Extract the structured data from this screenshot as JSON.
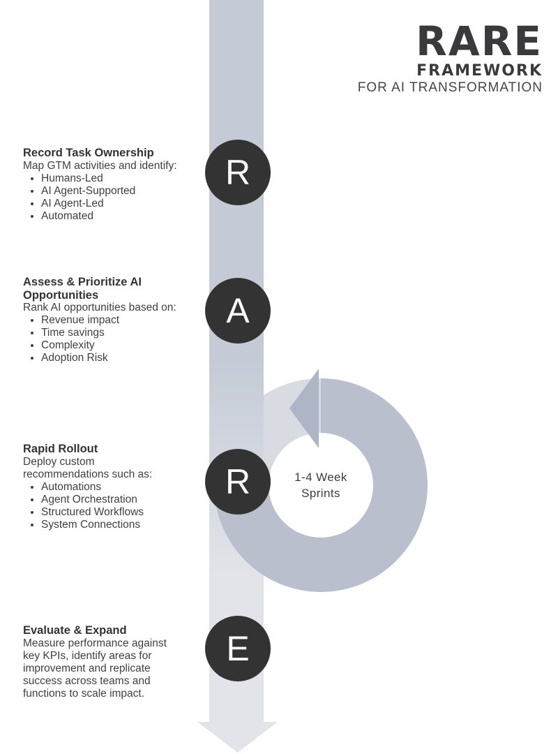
{
  "header": {
    "title": "RARE",
    "subtitle": "FRAMEWORK",
    "tagline": "FOR AI TRANSFORMATION"
  },
  "cycle": {
    "center_label": "1-4 Week\nSprints"
  },
  "steps": [
    {
      "letter": "R",
      "heading": "Record Task Ownership",
      "intro": "Map GTM activities and identify:",
      "bullets": [
        "Humans-Led",
        "AI Agent-Supported",
        "AI Agent-Led",
        "Automated"
      ]
    },
    {
      "letter": "A",
      "heading": "Assess & Prioritize AI Opportunities",
      "intro": "Rank AI opportunities based on:",
      "bullets": [
        "Revenue impact",
        "Time savings",
        "Complexity",
        "Adoption Risk"
      ]
    },
    {
      "letter": "R",
      "heading": "Rapid Rollout",
      "intro": "Deploy custom recommendations such as:",
      "bullets": [
        "Automations",
        "Agent Orchestration",
        "Structured Workflows",
        "System Connections"
      ]
    },
    {
      "letter": "E",
      "heading": "Evaluate & Expand",
      "intro": "Measure performance against key KPIs, identify areas for improvement and replicate success across teams and functions to scale impact.",
      "bullets": []
    }
  ],
  "colors": {
    "node_circle": "#333333",
    "band_top": "#c5cbd6",
    "band_bottom": "#e2e4e9",
    "ring": "#b9bfcc",
    "ring_highlight": "#d8dbe2",
    "cycle_arrow": "#aeb5c4",
    "text": "#3d3d3d"
  }
}
